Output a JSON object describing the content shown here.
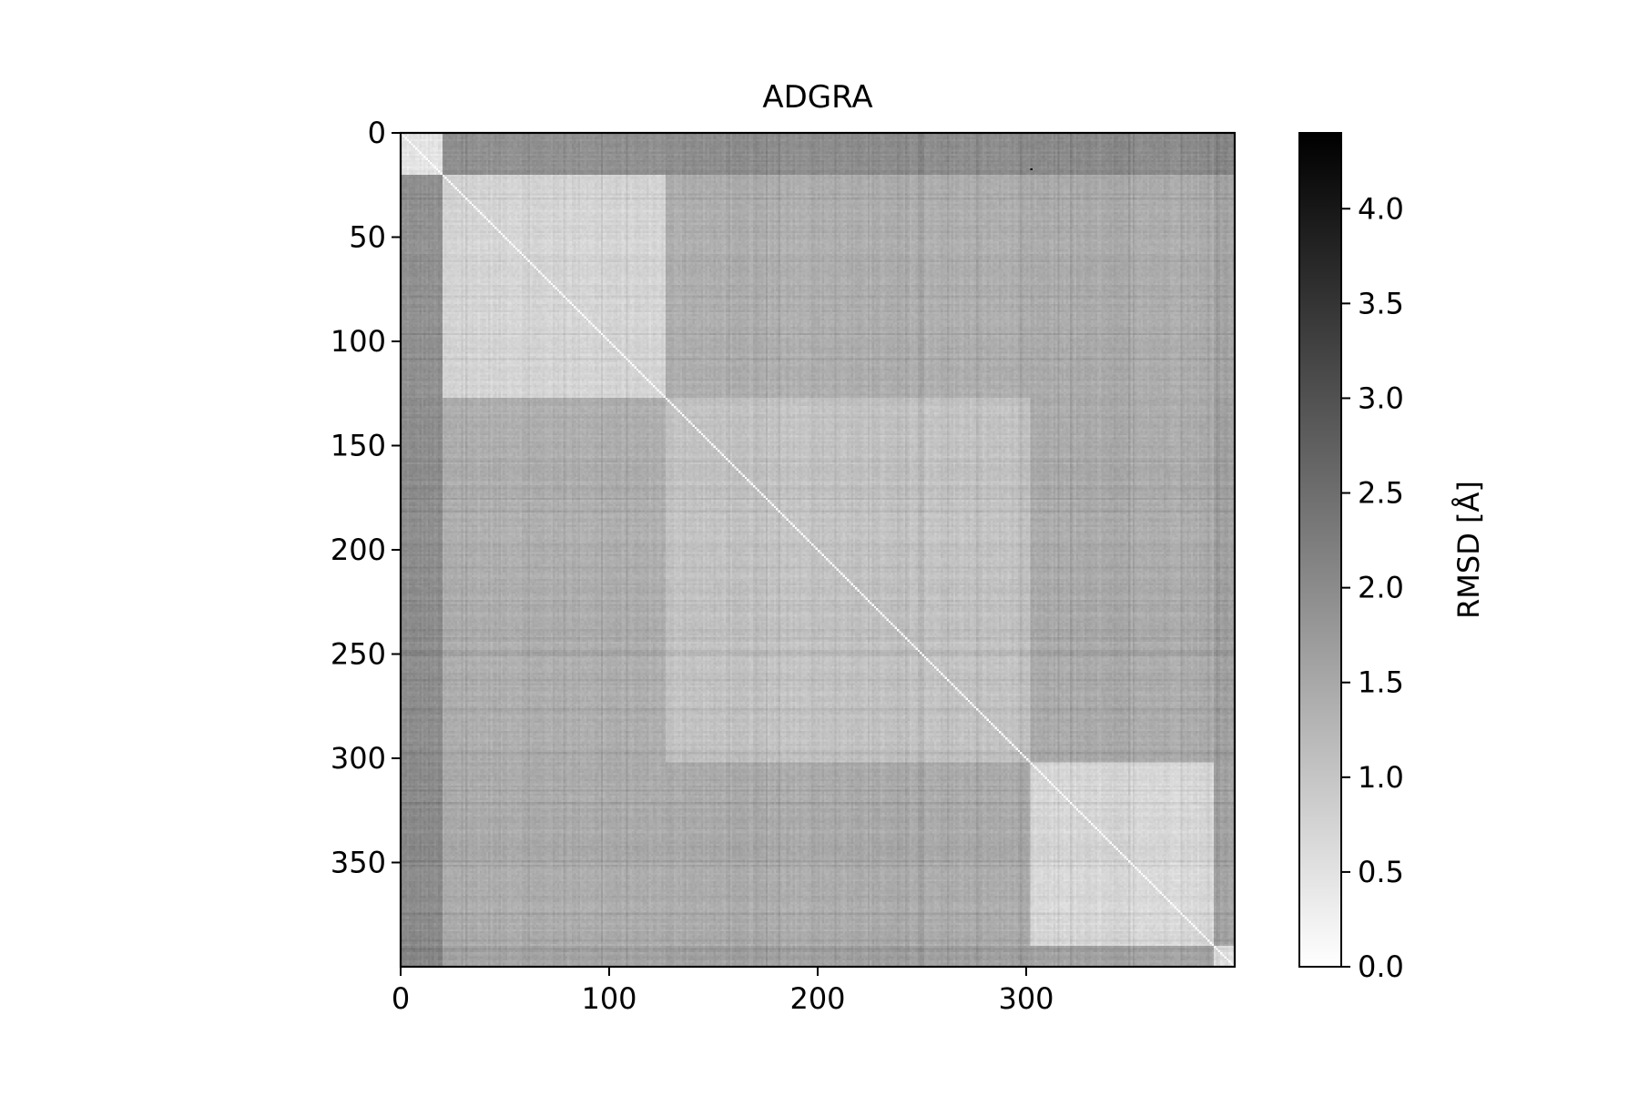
{
  "chart_data": {
    "type": "heatmap",
    "title": "ADGRA",
    "xlabel": "",
    "ylabel": "",
    "colorbar_label": "RMSD [Å]",
    "n": 400,
    "xlim": [
      0,
      400
    ],
    "ylim": [
      400,
      0
    ],
    "x_ticks": [
      0,
      100,
      200,
      300
    ],
    "y_ticks": [
      0,
      50,
      100,
      150,
      200,
      250,
      300,
      350
    ],
    "colormap": "Greys",
    "colormap_stops": [
      "#ffffff",
      "#000000"
    ],
    "vmin": 0.0,
    "vmax": 4.4,
    "colorbar_ticks": [
      0.0,
      0.5,
      1.0,
      1.5,
      2.0,
      2.5,
      3.0,
      3.5,
      4.0
    ],
    "colorbar_tick_labels": [
      "0.0",
      "0.5",
      "1.0",
      "1.5",
      "2.0",
      "2.5",
      "3.0",
      "3.5",
      "4.0"
    ],
    "x_tick_labels": [
      "0",
      "100",
      "200",
      "300"
    ],
    "y_tick_labels": [
      "0",
      "50",
      "100",
      "150",
      "200",
      "250",
      "300",
      "350"
    ],
    "clusters": [
      {
        "start": 0,
        "end": 20
      },
      {
        "start": 20,
        "end": 127
      },
      {
        "start": 127,
        "end": 302
      },
      {
        "start": 302,
        "end": 390
      },
      {
        "start": 390,
        "end": 400
      }
    ],
    "rmsd_within_clusters": [
      0.45,
      0.75,
      1.05,
      0.7,
      0.6
    ],
    "rmsd_between_clusters": [
      [
        0.45,
        1.9,
        1.95,
        2.0,
        2.1
      ],
      [
        1.9,
        0.75,
        1.4,
        1.45,
        1.6
      ],
      [
        1.95,
        1.4,
        1.05,
        1.45,
        1.65
      ],
      [
        2.0,
        1.45,
        1.45,
        0.7,
        1.6
      ],
      [
        2.1,
        1.6,
        1.65,
        1.6,
        0.6
      ]
    ],
    "diagonal_rmsd": 0.0,
    "max_rmsd_point": {
      "x": 302,
      "y": 17,
      "value": 4.4
    }
  }
}
